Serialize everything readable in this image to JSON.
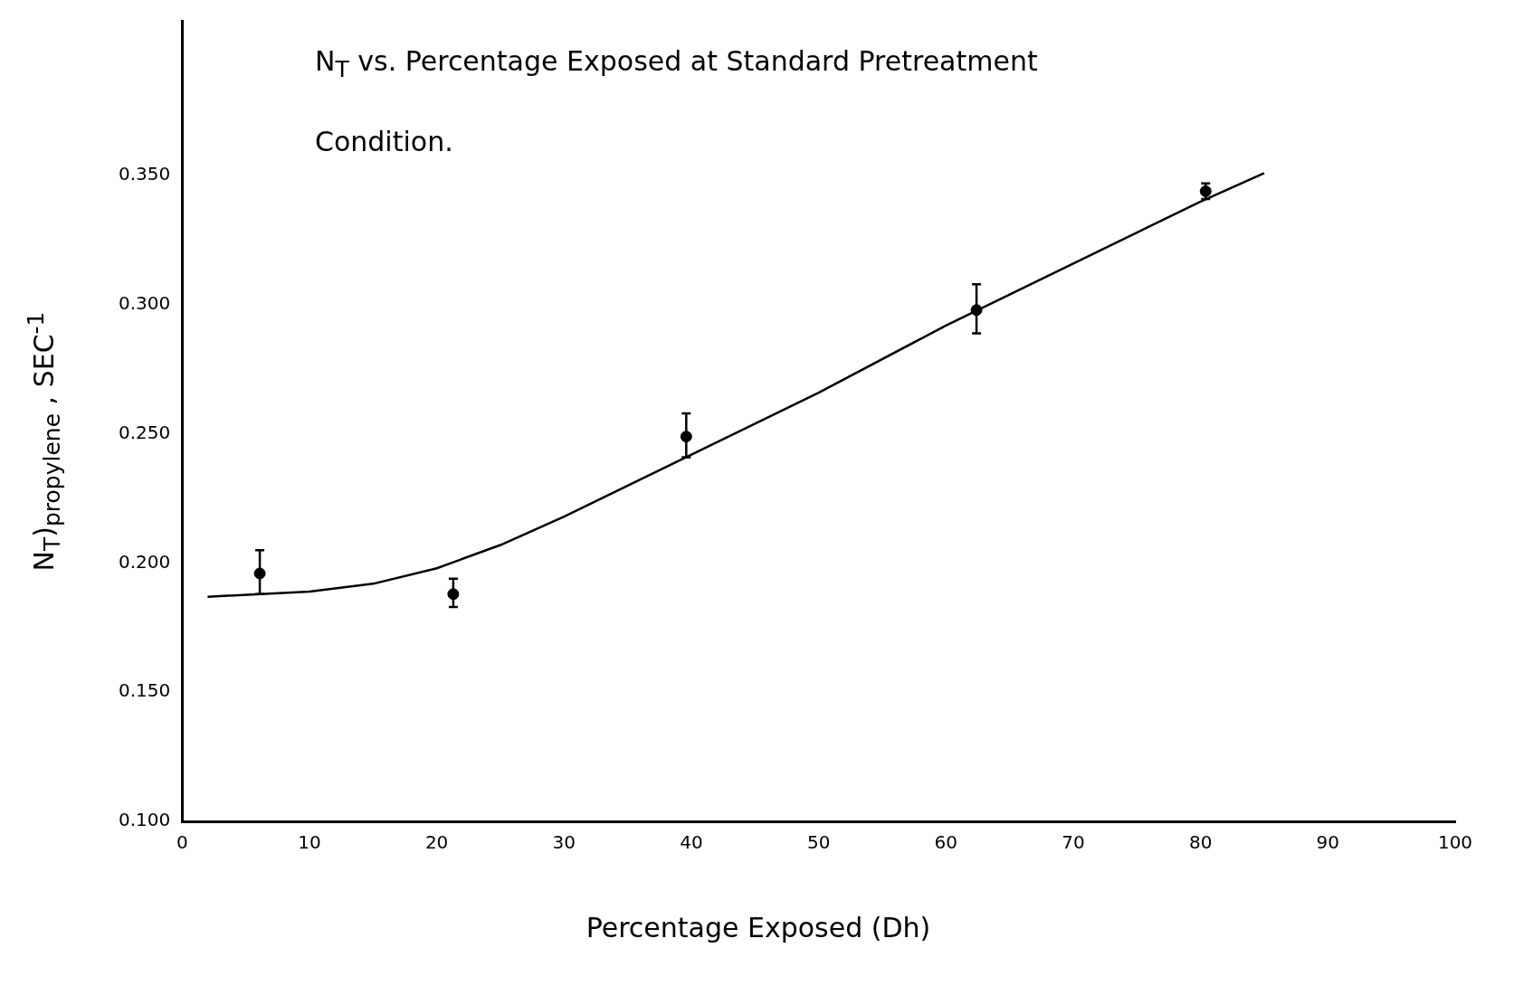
{
  "chart_data": {
    "type": "scatter",
    "title": "N$_{T}$ vs. Percentage Exposed at Standard Pretreatment Condition.",
    "xlabel": "Percentage Exposed (Dh)",
    "ylabel": "N$_{T}$)$_{propylene}$ , SEC$^{-1}$",
    "xlim": [
      0,
      100
    ],
    "xticks": [
      0,
      10,
      20,
      30,
      40,
      50,
      60,
      70,
      80,
      90,
      100
    ],
    "ylim": [
      0.1,
      0.41
    ],
    "yticks": [
      {
        "value": 0.1,
        "label": "0.100"
      },
      {
        "value": 0.15,
        "label": "0.150"
      },
      {
        "value": 0.2,
        "label": "0.200"
      },
      {
        "value": 0.25,
        "label": "0.250"
      },
      {
        "value": 0.3,
        "label": "0.300"
      },
      {
        "value": 0.35,
        "label": "0.350"
      }
    ],
    "grid": false,
    "legend": false,
    "series": [
      {
        "type": "scatter",
        "color": "#000000",
        "marker": "circle",
        "x": [
          6.1,
          21.3,
          39.6,
          62.4,
          80.4
        ],
        "values": [
          0.196,
          0.188,
          0.249,
          0.298,
          0.344
        ],
        "errors": [
          [
            0.188,
            0.205
          ],
          [
            0.183,
            0.194
          ],
          [
            0.241,
            0.258
          ],
          [
            0.289,
            0.308
          ],
          [
            0.341,
            0.347
          ]
        ]
      },
      {
        "type": "line",
        "color": "#000000",
        "marker": "none",
        "line_style": "solid",
        "x": [
          2,
          10,
          15,
          20,
          25,
          30,
          40,
          50,
          60,
          70,
          80,
          85
        ],
        "values": [
          0.187,
          0.189,
          0.192,
          0.198,
          0.207,
          0.218,
          0.242,
          0.266,
          0.292,
          0.316,
          0.34,
          0.351
        ]
      }
    ]
  }
}
